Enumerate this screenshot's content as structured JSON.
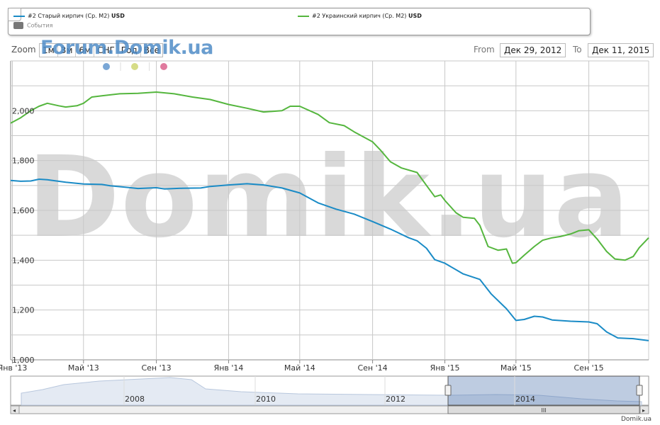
{
  "legend": {
    "series1_label": "#2 Старый кирпич (Ср. М2)",
    "series1_unit": "USD",
    "series2_label": "#2 Украинский кирпич (Ср. М2)",
    "series2_unit": "USD",
    "events_label": "События",
    "series1_color": "#1a8bc6",
    "series2_color": "#55b63e"
  },
  "range_selector": {
    "zoom_label": "Zoom",
    "buttons": [
      "1м",
      "3м",
      "6м",
      "СНГ",
      "Год",
      "Все"
    ],
    "from_label": "From",
    "from_value": "Дек 29, 2012",
    "to_label": "To",
    "to_value": "Дек 11, 2015"
  },
  "watermarks": {
    "forum": "Forum.Domik.ua",
    "main": "Domik.ua"
  },
  "event_markers": [
    {
      "color": "#7aa7d6"
    },
    {
      "color": "#d6dc86"
    },
    {
      "color": "#e07a9e"
    }
  ],
  "credit": "Domik.ua",
  "navigator": {
    "year_labels": [
      "2008",
      "2010",
      "2012",
      "2014"
    ],
    "scroll_marker": "III"
  },
  "chart_data": {
    "type": "line",
    "x_type": "date",
    "xlim": [
      "2012-12-29",
      "2015-12-11"
    ],
    "ylim": [
      1000,
      2200
    ],
    "yticks": [
      1000,
      1200,
      1400,
      1600,
      1800,
      2000
    ],
    "ytick_labels": [
      "1,000",
      "1,200",
      "1,400",
      "1,600",
      "1,800",
      "2,000"
    ],
    "xticks": [
      "2013-01-01",
      "2013-05-01",
      "2013-09-01",
      "2014-01-01",
      "2014-05-01",
      "2014-09-01",
      "2015-01-01",
      "2015-05-01",
      "2015-09-01"
    ],
    "xtick_labels": [
      "Янв '13",
      "Май '13",
      "Сен '13",
      "Янв '14",
      "Май '14",
      "Сен '14",
      "Янв '15",
      "Май '15",
      "Сен '15"
    ],
    "grid": true,
    "legend_position": "top",
    "series": [
      {
        "name": "#2 Старый кирпич (Ср. М2)",
        "unit": "USD",
        "color": "#1a8bc6",
        "points": [
          [
            "2012-12-29",
            1720
          ],
          [
            "2013-01-15",
            1717
          ],
          [
            "2013-02-01",
            1718
          ],
          [
            "2013-02-15",
            1725
          ],
          [
            "2013-03-01",
            1723
          ],
          [
            "2013-04-01",
            1713
          ],
          [
            "2013-05-01",
            1706
          ],
          [
            "2013-06-01",
            1704
          ],
          [
            "2013-06-15",
            1699
          ],
          [
            "2013-07-15",
            1692
          ],
          [
            "2013-08-01",
            1688
          ],
          [
            "2013-09-01",
            1691
          ],
          [
            "2013-09-15",
            1686
          ],
          [
            "2013-10-15",
            1689
          ],
          [
            "2013-11-15",
            1690
          ],
          [
            "2013-12-01",
            1696
          ],
          [
            "2014-01-01",
            1702
          ],
          [
            "2014-02-01",
            1707
          ],
          [
            "2014-03-01",
            1702
          ],
          [
            "2014-04-01",
            1690
          ],
          [
            "2014-05-01",
            1670
          ],
          [
            "2014-06-01",
            1630
          ],
          [
            "2014-07-01",
            1605
          ],
          [
            "2014-08-01",
            1585
          ],
          [
            "2014-09-01",
            1555
          ],
          [
            "2014-10-01",
            1525
          ],
          [
            "2014-11-01",
            1490
          ],
          [
            "2014-11-15",
            1478
          ],
          [
            "2014-12-01",
            1448
          ],
          [
            "2014-12-15",
            1402
          ],
          [
            "2015-01-01",
            1388
          ],
          [
            "2015-02-01",
            1345
          ],
          [
            "2015-03-01",
            1323
          ],
          [
            "2015-03-20",
            1265
          ],
          [
            "2015-04-15",
            1205
          ],
          [
            "2015-05-01",
            1158
          ],
          [
            "2015-05-15",
            1162
          ],
          [
            "2015-06-01",
            1175
          ],
          [
            "2015-06-15",
            1172
          ],
          [
            "2015-07-01",
            1160
          ],
          [
            "2015-08-01",
            1155
          ],
          [
            "2015-09-01",
            1152
          ],
          [
            "2015-09-15",
            1145
          ],
          [
            "2015-10-01",
            1112
          ],
          [
            "2015-10-20",
            1088
          ],
          [
            "2015-11-15",
            1085
          ],
          [
            "2015-12-11",
            1077
          ]
        ]
      },
      {
        "name": "#2 Украинский кирпич (Ср. М2)",
        "unit": "USD",
        "color": "#55b63e",
        "points": [
          [
            "2012-12-29",
            1950
          ],
          [
            "2013-01-15",
            1972
          ],
          [
            "2013-02-01",
            2000
          ],
          [
            "2013-02-15",
            2018
          ],
          [
            "2013-03-01",
            2030
          ],
          [
            "2013-03-20",
            2020
          ],
          [
            "2013-04-01",
            2015
          ],
          [
            "2013-04-20",
            2020
          ],
          [
            "2013-05-01",
            2030
          ],
          [
            "2013-05-15",
            2055
          ],
          [
            "2013-06-01",
            2060
          ],
          [
            "2013-07-01",
            2068
          ],
          [
            "2013-08-01",
            2070
          ],
          [
            "2013-09-01",
            2075
          ],
          [
            "2013-10-01",
            2068
          ],
          [
            "2013-11-01",
            2055
          ],
          [
            "2013-12-01",
            2045
          ],
          [
            "2014-01-01",
            2025
          ],
          [
            "2014-02-01",
            2010
          ],
          [
            "2014-03-01",
            1995
          ],
          [
            "2014-04-01",
            2000
          ],
          [
            "2014-04-15",
            2018
          ],
          [
            "2014-05-01",
            2018
          ],
          [
            "2014-06-01",
            1985
          ],
          [
            "2014-06-20",
            1952
          ],
          [
            "2014-07-15",
            1940
          ],
          [
            "2014-08-01",
            1915
          ],
          [
            "2014-09-01",
            1875
          ],
          [
            "2014-09-15",
            1840
          ],
          [
            "2014-10-01",
            1795
          ],
          [
            "2014-10-20",
            1770
          ],
          [
            "2014-11-15",
            1752
          ],
          [
            "2014-12-01",
            1700
          ],
          [
            "2014-12-15",
            1655
          ],
          [
            "2014-12-25",
            1662
          ],
          [
            "2015-01-01",
            1640
          ],
          [
            "2015-01-20",
            1590
          ],
          [
            "2015-02-01",
            1572
          ],
          [
            "2015-02-20",
            1568
          ],
          [
            "2015-03-01",
            1540
          ],
          [
            "2015-03-15",
            1455
          ],
          [
            "2015-04-01",
            1440
          ],
          [
            "2015-04-15",
            1445
          ],
          [
            "2015-04-25",
            1388
          ],
          [
            "2015-05-01",
            1390
          ],
          [
            "2015-05-15",
            1420
          ],
          [
            "2015-06-01",
            1455
          ],
          [
            "2015-06-15",
            1480
          ],
          [
            "2015-07-01",
            1490
          ],
          [
            "2015-07-15",
            1495
          ],
          [
            "2015-08-01",
            1505
          ],
          [
            "2015-08-15",
            1518
          ],
          [
            "2015-09-01",
            1522
          ],
          [
            "2015-09-15",
            1485
          ],
          [
            "2015-10-01",
            1435
          ],
          [
            "2015-10-15",
            1405
          ],
          [
            "2015-11-01",
            1400
          ],
          [
            "2015-11-15",
            1415
          ],
          [
            "2015-11-25",
            1450
          ],
          [
            "2015-12-11",
            1490
          ]
        ]
      }
    ]
  }
}
